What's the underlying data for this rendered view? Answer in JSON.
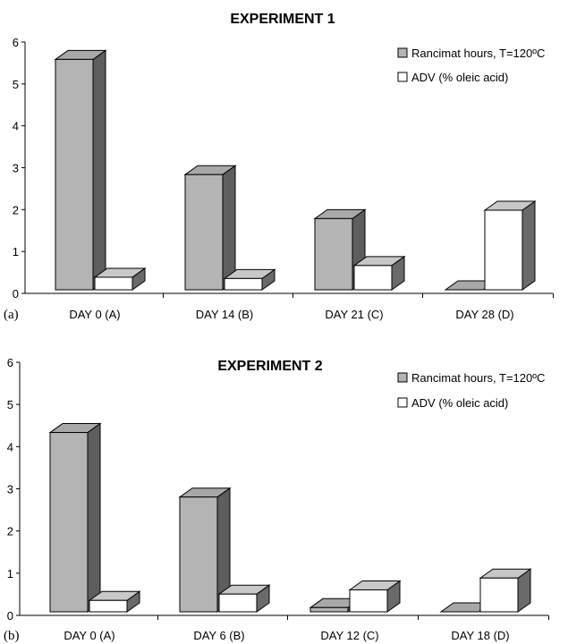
{
  "chart_data": [
    {
      "type": "bar",
      "panel_label": "(a)",
      "title": "EXPERIMENT 1",
      "categories": [
        "DAY 0 (A)",
        "DAY 14 (B)",
        "DAY 21 (C)",
        "DAY 28 (D)"
      ],
      "series": [
        {
          "name": "Rancimat hours, T=120ºC",
          "values": [
            5.5,
            2.75,
            1.7,
            0.0
          ],
          "color": "#b4b4b4"
        },
        {
          "name": "ADV  (% oleic acid)",
          "values": [
            0.3,
            0.27,
            0.58,
            1.9
          ],
          "color": "#ffffff"
        }
      ],
      "ylim": [
        0,
        6
      ],
      "yticks": [
        "0",
        "1",
        "2",
        "3",
        "4",
        "5",
        "6"
      ],
      "legend_position": "top-right"
    },
    {
      "type": "bar",
      "panel_label": "(b)",
      "title": "EXPERIMENT 2",
      "categories": [
        "DAY 0 (A)",
        "DAY 6 (B)",
        "DAY 12 (C)",
        "DAY 18 (D)"
      ],
      "series": [
        {
          "name": "Rancimat hours, T=120ºC",
          "values": [
            4.25,
            2.72,
            0.1,
            0.0
          ],
          "color": "#b4b4b4"
        },
        {
          "name": "ADV  (% oleic acid)",
          "values": [
            0.27,
            0.42,
            0.52,
            0.8
          ],
          "color": "#ffffff"
        }
      ],
      "ylim": [
        0,
        6
      ],
      "yticks": [
        "0",
        "1",
        "2",
        "3",
        "4",
        "5",
        "6"
      ],
      "legend_position": "top-right"
    }
  ]
}
